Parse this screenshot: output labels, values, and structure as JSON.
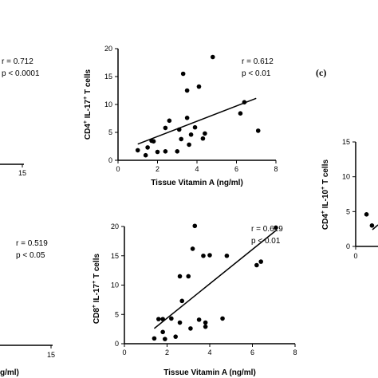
{
  "chart_data": [
    {
      "type": "scatter",
      "panel": "top-left-partial",
      "stats": {
        "r": "r = 0.712",
        "p": "p < 0.0001"
      },
      "x_ticks": [
        "15"
      ],
      "points": [],
      "regression": null
    },
    {
      "type": "scatter",
      "panel": "top-middle",
      "xlabel": "Tissue Vitamin A (ng/ml)",
      "ylabel": "CD4+ IL-17+ T cells",
      "ylabel_parts": {
        "base": "CD4",
        "sup1": "+",
        "mid": " IL-17",
        "sup2": "+",
        "end": " T cells"
      },
      "xlim": [
        0,
        8
      ],
      "ylim": [
        0,
        20
      ],
      "x_ticks": [
        "0",
        "2",
        "4",
        "6",
        "8"
      ],
      "y_ticks": [
        "0",
        "5",
        "10",
        "15",
        "20"
      ],
      "stats": {
        "r": "r = 0.612",
        "p": "p < 0.01"
      },
      "points": [
        [
          1.0,
          1.8
        ],
        [
          1.4,
          0.9
        ],
        [
          1.5,
          2.3
        ],
        [
          1.7,
          3.5
        ],
        [
          1.8,
          3.4
        ],
        [
          2.0,
          1.5
        ],
        [
          2.4,
          5.8
        ],
        [
          2.4,
          1.6
        ],
        [
          2.6,
          7.1
        ],
        [
          3.0,
          1.6
        ],
        [
          3.1,
          5.5
        ],
        [
          3.2,
          3.8
        ],
        [
          3.3,
          15.5
        ],
        [
          3.5,
          12.5
        ],
        [
          3.5,
          7.6
        ],
        [
          3.6,
          2.8
        ],
        [
          3.7,
          4.6
        ],
        [
          3.9,
          5.9
        ],
        [
          4.1,
          13.2
        ],
        [
          4.3,
          3.9
        ],
        [
          4.4,
          4.8
        ],
        [
          4.8,
          18.5
        ],
        [
          6.2,
          8.4
        ],
        [
          6.4,
          10.4
        ],
        [
          7.1,
          5.3
        ]
      ],
      "regression": {
        "x": [
          1.0,
          7.0
        ],
        "y": [
          2.9,
          11.1
        ]
      }
    },
    {
      "type": "scatter",
      "panel": "top-right-partial",
      "panel_label": "(c)",
      "ylabel": "CD4+ IL-10+ T cells",
      "ylabel_parts": {
        "base": "CD4",
        "sup1": "+",
        "mid": " IL-10",
        "sup2": "+",
        "end": " T cells"
      },
      "ylim": [
        0,
        15
      ],
      "y_ticks": [
        "0",
        "5",
        "10",
        "15"
      ],
      "x_ticks": [
        "0"
      ],
      "points": [
        [
          0.8,
          4.6
        ],
        [
          1.2,
          3.0
        ]
      ],
      "regression": null
    },
    {
      "type": "scatter",
      "panel": "bottom-left-partial",
      "xlabel_fragment": "g/ml)",
      "stats": {
        "r": "r = 0.519",
        "p": "p < 0.05"
      },
      "x_ticks": [
        "15"
      ],
      "points": [],
      "regression": null
    },
    {
      "type": "scatter",
      "panel": "bottom-middle",
      "xlabel": "Tissue Vitamin A (ng/ml)",
      "ylabel": "CD8+ IL-17+ T cells",
      "ylabel_parts": {
        "base": "CD8",
        "sup1": "+",
        "mid": " IL-17",
        "sup2": "+",
        "end": " T cells"
      },
      "xlim": [
        0,
        8
      ],
      "ylim": [
        0,
        20
      ],
      "x_ticks": [
        "0",
        "2",
        "4",
        "6",
        "8"
      ],
      "y_ticks": [
        "0",
        "5",
        "10",
        "15",
        "20"
      ],
      "stats": {
        "r": "r = 0.619",
        "p": "p < 0.01"
      },
      "points": [
        [
          1.4,
          0.9
        ],
        [
          1.6,
          4.2
        ],
        [
          1.8,
          4.2
        ],
        [
          1.8,
          2.0
        ],
        [
          1.9,
          0.8
        ],
        [
          2.2,
          4.3
        ],
        [
          2.4,
          1.2
        ],
        [
          2.6,
          3.6
        ],
        [
          2.6,
          11.5
        ],
        [
          2.7,
          7.3
        ],
        [
          3.0,
          11.5
        ],
        [
          3.1,
          2.6
        ],
        [
          3.3,
          20.1
        ],
        [
          3.2,
          16.2
        ],
        [
          3.5,
          4.1
        ],
        [
          3.7,
          15.0
        ],
        [
          3.8,
          2.9
        ],
        [
          3.8,
          3.6
        ],
        [
          4.0,
          15.1
        ],
        [
          4.6,
          4.3
        ],
        [
          4.8,
          15.0
        ],
        [
          6.2,
          13.4
        ],
        [
          6.4,
          14.0
        ],
        [
          7.1,
          19.8
        ]
      ],
      "regression": {
        "x": [
          1.4,
          7.1
        ],
        "y": [
          2.6,
          19.3
        ]
      }
    }
  ]
}
